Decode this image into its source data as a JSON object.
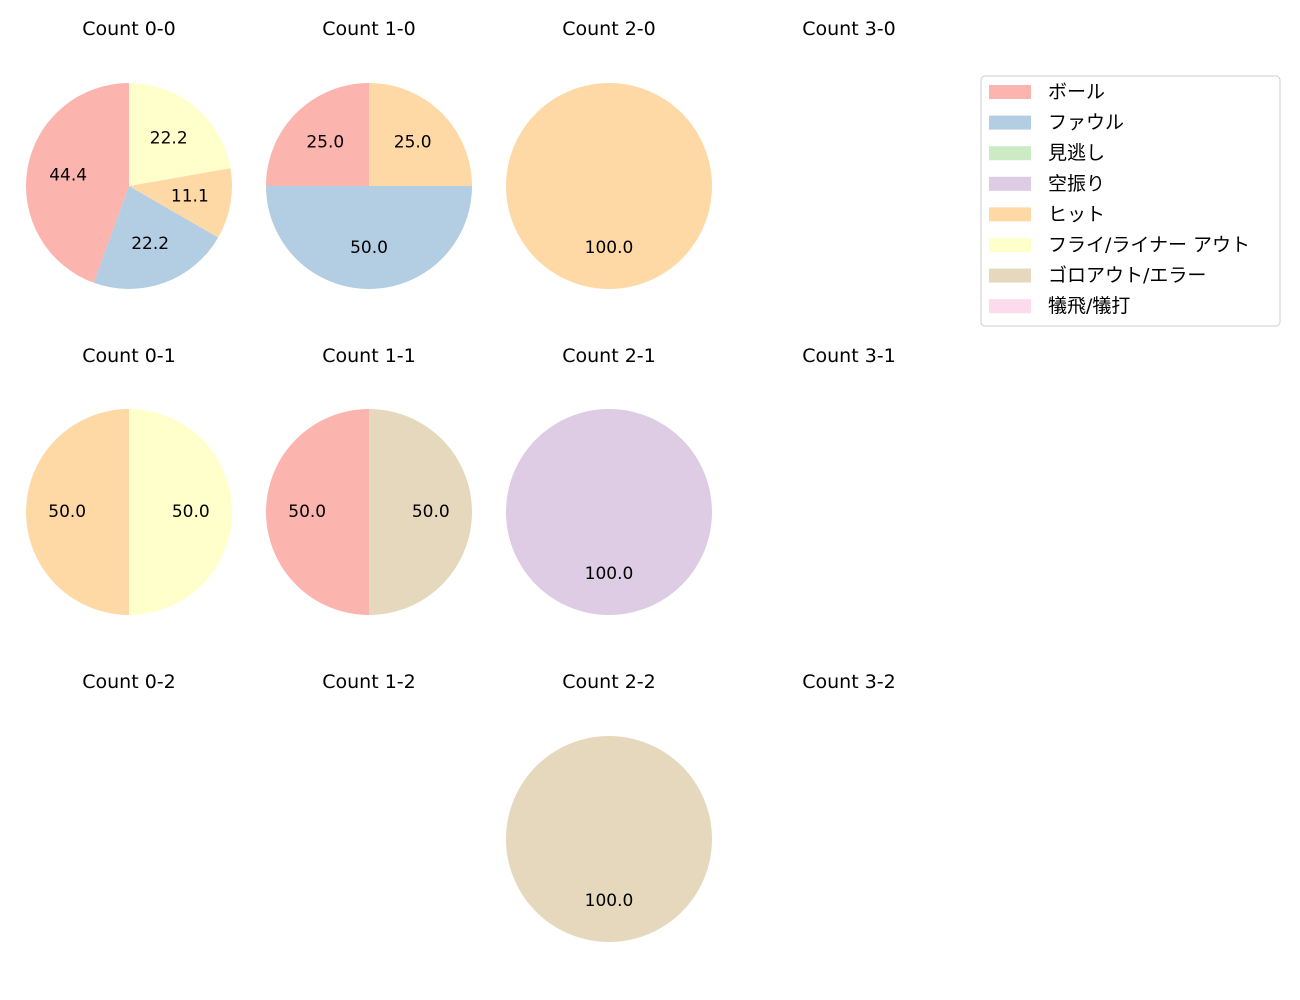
{
  "legend": {
    "entries": [
      {
        "label": "ボール",
        "color": "#fbb4ae"
      },
      {
        "label": "ファウル",
        "color": "#b3cde3"
      },
      {
        "label": "見逃し",
        "color": "#ccebc5"
      },
      {
        "label": "空振り",
        "color": "#decbe4"
      },
      {
        "label": "ヒット",
        "color": "#fed9a6"
      },
      {
        "label": "フライ/ライナー アウト",
        "color": "#ffffcc"
      },
      {
        "label": "ゴロアウト/エラー",
        "color": "#e5d8bd"
      },
      {
        "label": "犠飛/犠打",
        "color": "#fddaec"
      }
    ]
  },
  "chart_data": [
    {
      "type": "pie",
      "title": "Count 0-0",
      "slices": [
        {
          "category": "ボール",
          "value": 44.4
        },
        {
          "category": "ファウル",
          "value": 22.2
        },
        {
          "category": "ヒット",
          "value": 11.1
        },
        {
          "category": "フライ/ライナー アウト",
          "value": 22.2
        }
      ]
    },
    {
      "type": "pie",
      "title": "Count 1-0",
      "slices": [
        {
          "category": "ボール",
          "value": 25.0
        },
        {
          "category": "ファウル",
          "value": 50.0
        },
        {
          "category": "ヒット",
          "value": 25.0
        }
      ]
    },
    {
      "type": "pie",
      "title": "Count 2-0",
      "slices": [
        {
          "category": "ヒット",
          "value": 100.0
        }
      ]
    },
    {
      "type": "pie",
      "title": "Count 3-0",
      "slices": []
    },
    {
      "type": "pie",
      "title": "Count 0-1",
      "slices": [
        {
          "category": "ヒット",
          "value": 50.0
        },
        {
          "category": "フライ/ライナー アウト",
          "value": 50.0
        }
      ]
    },
    {
      "type": "pie",
      "title": "Count 1-1",
      "slices": [
        {
          "category": "ボール",
          "value": 50.0
        },
        {
          "category": "ゴロアウト/エラー",
          "value": 50.0
        }
      ]
    },
    {
      "type": "pie",
      "title": "Count 2-1",
      "slices": [
        {
          "category": "空振り",
          "value": 100.0
        }
      ]
    },
    {
      "type": "pie",
      "title": "Count 3-1",
      "slices": []
    },
    {
      "type": "pie",
      "title": "Count 0-2",
      "slices": []
    },
    {
      "type": "pie",
      "title": "Count 1-2",
      "slices": []
    },
    {
      "type": "pie",
      "title": "Count 2-2",
      "slices": [
        {
          "category": "ゴロアウト/エラー",
          "value": 100.0
        }
      ]
    },
    {
      "type": "pie",
      "title": "Count 3-2",
      "slices": []
    }
  ]
}
